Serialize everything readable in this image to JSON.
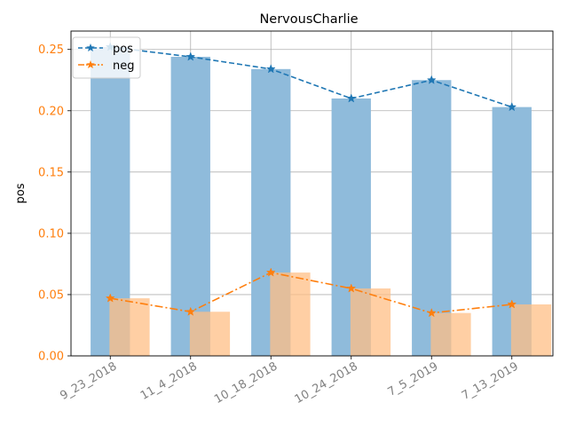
{
  "chart_data": {
    "type": "bar",
    "title": "NervousCharlie",
    "ylabel": "pos",
    "xlabel": "",
    "categories": [
      "9_23_2018",
      "11_4_2018",
      "10_18_2018",
      "10_24_2018",
      "7_5_2019",
      "7_13_2019"
    ],
    "ylim": [
      0,
      0.265
    ],
    "yticks": [
      0.0,
      0.05,
      0.1,
      0.15,
      0.2,
      0.25
    ],
    "ytick_labels": [
      "0.00",
      "0.05",
      "0.10",
      "0.15",
      "0.20",
      "0.25"
    ],
    "grid": true,
    "legend_position": "top-left",
    "series": [
      {
        "name": "pos",
        "values": [
          0.252,
          0.244,
          0.234,
          0.21,
          0.225,
          0.203
        ],
        "color": "#1f77b4",
        "bar_color": "#8fbbdb",
        "line_style": "dashed",
        "marker": "star"
      },
      {
        "name": "neg",
        "values": [
          0.047,
          0.036,
          0.068,
          0.055,
          0.035,
          0.042
        ],
        "color": "#ff7f0e",
        "bar_color": "#ffbf86",
        "line_style": "dashdot",
        "marker": "star"
      }
    ],
    "colors": {
      "ytick_color": "#ff7f0e",
      "xtick_color": "#808080",
      "grid_color": "#b0b0b0"
    }
  }
}
